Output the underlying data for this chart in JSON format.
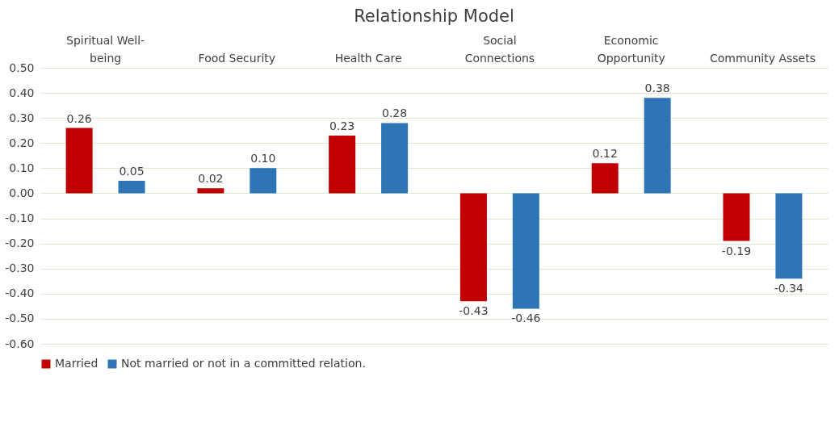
{
  "chart_data": {
    "type": "bar",
    "title": "Relationship Model",
    "categories": [
      "Spiritual Well-being",
      "Food Security",
      "Health Care",
      "Social Connections",
      "Economic Opportunity",
      "Community Assets"
    ],
    "series": [
      {
        "name": "Married",
        "color": "#c00000",
        "values": [
          0.26,
          0.02,
          0.23,
          -0.43,
          0.12,
          -0.19
        ],
        "value_labels": [
          "0.26",
          "0.02",
          "0.23",
          "-0.43",
          "0.12",
          "-0.19"
        ]
      },
      {
        "name": "Not married or not in a committed relation.",
        "color": "#2e75b6",
        "values": [
          0.05,
          0.1,
          0.28,
          -0.46,
          0.38,
          -0.34
        ],
        "value_labels": [
          "0.05",
          "0.10",
          "0.28",
          "-0.46",
          "0.38",
          "-0.34"
        ]
      }
    ],
    "ylim": [
      -0.6,
      0.5
    ],
    "yticks": [
      {
        "value": -0.6,
        "label": "-0.60"
      },
      {
        "value": -0.5,
        "label": "-0.50"
      },
      {
        "value": -0.4,
        "label": "-0.40"
      },
      {
        "value": -0.3,
        "label": "-0.30"
      },
      {
        "value": -0.2,
        "label": "-0.20"
      },
      {
        "value": -0.1,
        "label": "-0.10"
      },
      {
        "value": 0,
        "label": "0.00"
      },
      {
        "value": 0.1,
        "label": "0.10"
      },
      {
        "value": 0.2,
        "label": "0.20"
      },
      {
        "value": 0.3,
        "label": "0.30"
      },
      {
        "value": 0.4,
        "label": "0.40"
      },
      {
        "value": 0.5,
        "label": "0.50"
      }
    ],
    "grid": "y",
    "legend": "bottom"
  }
}
